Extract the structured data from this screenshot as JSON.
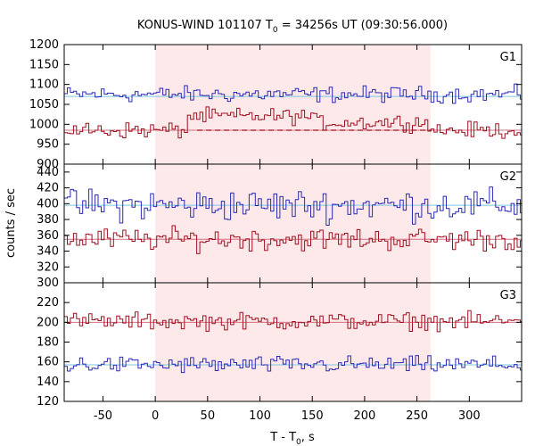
{
  "chart_data": {
    "type": "line",
    "title_main": "KONUS-WIND 101107 T",
    "title_sub": "0",
    "title_rest": " = 34256s UT (09:30:56.000)",
    "xlabel_main": "T - T",
    "xlabel_sub": "0",
    "xlabel_rest": ", s",
    "ylabel": "counts / sec",
    "xlim": [
      -87,
      350
    ],
    "x_ticks": [
      -50,
      0,
      50,
      100,
      150,
      200,
      250,
      300
    ],
    "highlight_interval": [
      0,
      263
    ],
    "highlight_color": "#fde8ea",
    "panels": [
      {
        "label": "G1",
        "ylim": [
          900,
          1200
        ],
        "y_ticks": [
          900,
          950,
          1000,
          1050,
          1100,
          1150,
          1200
        ],
        "series": [
          {
            "color": "#2b2bb8",
            "background": 1070,
            "background_color": "#7ec8e3",
            "mean": 1075,
            "amplitude": 14,
            "step": 2.944
          },
          {
            "color": "#a01020",
            "background": 985,
            "background_color": "#d07080",
            "mean": 985,
            "amplitude": 14,
            "step": 2.944,
            "bump": {
              "start": 30,
              "end": 150,
              "height": 35
            },
            "bump2": {
              "start": 150,
              "end": 263,
              "height": 20
            },
            "dashed_level": 985
          }
        ]
      },
      {
        "label": "G2",
        "ylim": [
          300,
          450
        ],
        "y_ticks": [
          300,
          320,
          340,
          360,
          380,
          400,
          420,
          440
        ],
        "series": [
          {
            "color": "#2b2bb8",
            "background": 398,
            "background_color": "#7ec8e3",
            "mean": 398,
            "amplitude": 14,
            "step": 2.944
          },
          {
            "color": "#a01020",
            "background": 355,
            "background_color": "#d07080",
            "mean": 355,
            "amplitude": 10,
            "step": 2.944
          }
        ]
      },
      {
        "label": "G3",
        "ylim": [
          120,
          240
        ],
        "y_ticks": [
          120,
          140,
          160,
          180,
          200,
          220
        ],
        "series": [
          {
            "color": "#a01020",
            "background": 200,
            "background_color": "#d07080",
            "mean": 201,
            "amplitude": 6,
            "step": 2.944
          },
          {
            "color": "#2b2bb8",
            "background": 157,
            "background_color": "#7ec8e3",
            "mean": 157,
            "amplitude": 6,
            "step": 2.944
          }
        ]
      }
    ]
  }
}
